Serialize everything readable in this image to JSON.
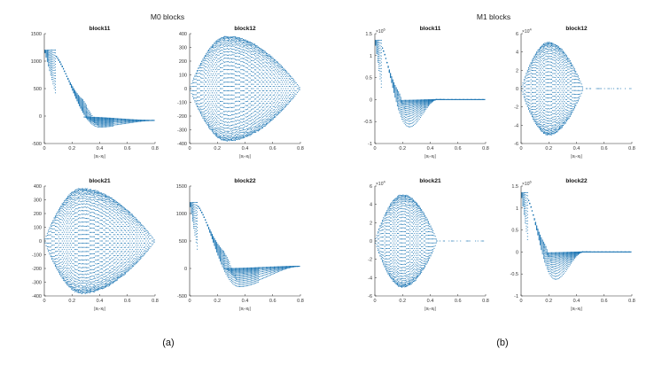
{
  "groups": [
    {
      "id": "m0",
      "title": "M0 blocks",
      "caption": "(a)"
    },
    {
      "id": "m1",
      "title": "M1 blocks",
      "caption": "(b)"
    }
  ],
  "chart_data": [
    {
      "type": "scatter",
      "group": "m0",
      "title": "block11",
      "xlabel": "|xᵢ-xⱼ|",
      "xlim": [
        0,
        0.8
      ],
      "ylim": [
        -500,
        1500
      ],
      "xticks": [
        "0",
        "0.2",
        "0.4",
        "0.6",
        "0.8"
      ],
      "yticks": [
        -500,
        0,
        500,
        1000,
        1500
      ],
      "ytick_labels": [
        "-500",
        "0",
        "500",
        "1000",
        "1500"
      ],
      "y_exponent": "",
      "shape": "decay",
      "series_color": "#1f77b4",
      "params": {
        "start": 1200,
        "low_x": 0.4,
        "low_val": -200,
        "end_val": -80,
        "fan_low": -50,
        "fan_high": 420,
        "fan_peak_x": 0.33,
        "fan_start": 0.08,
        "fan_end": 0.55,
        "flat_from": 0.8
      }
    },
    {
      "type": "scatter",
      "group": "m0",
      "title": "block12",
      "xlabel": "|xᵢ-xⱼ|",
      "xlim": [
        0,
        0.8
      ],
      "ylim": [
        -400,
        400
      ],
      "xticks": [
        "0",
        "0.2",
        "0.4",
        "0.6",
        "0.8"
      ],
      "yticks": [
        -400,
        -300,
        -200,
        -100,
        0,
        100,
        200,
        300,
        400
      ],
      "ytick_labels": [
        "-400",
        "-300",
        "-200",
        "-100",
        "0",
        "100",
        "200",
        "300",
        "400"
      ],
      "y_exponent": "",
      "shape": "lens",
      "series_color": "#1f77b4",
      "params": {
        "amp": 385,
        "peak_x": 0.27,
        "end_x": 0.8
      }
    },
    {
      "type": "scatter",
      "group": "m0",
      "title": "block21",
      "xlabel": "|xᵢ-xⱼ|",
      "xlim": [
        0,
        0.8
      ],
      "ylim": [
        -400,
        400
      ],
      "xticks": [
        "0",
        "0.2",
        "0.4",
        "0.6",
        "0.8"
      ],
      "yticks": [
        -400,
        -300,
        -200,
        -100,
        0,
        100,
        200,
        300,
        400
      ],
      "ytick_labels": [
        "-400",
        "-300",
        "-200",
        "-100",
        "0",
        "100",
        "200",
        "300",
        "400"
      ],
      "y_exponent": "",
      "shape": "lens",
      "series_color": "#1f77b4",
      "params": {
        "amp": 385,
        "peak_x": 0.27,
        "end_x": 0.8
      }
    },
    {
      "type": "scatter",
      "group": "m0",
      "title": "block22",
      "xlabel": "|xᵢ-xⱼ|",
      "xlim": [
        0,
        0.8
      ],
      "ylim": [
        -500,
        1500
      ],
      "xticks": [
        "0",
        "0.2",
        "0.4",
        "0.6",
        "0.8"
      ],
      "yticks": [
        -500,
        0,
        500,
        1000,
        1500
      ],
      "ytick_labels": [
        "-500",
        "0",
        "500",
        "1000",
        "1500"
      ],
      "y_exponent": "",
      "shape": "decay",
      "series_color": "#1f77b4",
      "params": {
        "start": 1200,
        "low_x": 0.36,
        "low_val": -330,
        "end_val": 40,
        "fan_low": 0,
        "fan_high": 270,
        "fan_peak_x": 0.42,
        "fan_start": 0.06,
        "fan_end": 0.6,
        "flat_from": 0.8
      }
    },
    {
      "type": "scatter",
      "group": "m1",
      "title": "block11",
      "xlabel": "|xᵢ-xⱼ|",
      "xlim": [
        0,
        0.8
      ],
      "ylim": [
        -1,
        1.5
      ],
      "xticks": [
        "0",
        "0.2",
        "0.4",
        "0.6",
        "0.8"
      ],
      "yticks": [
        -1,
        -0.5,
        0,
        0.5,
        1,
        1.5
      ],
      "ytick_labels": [
        "-1",
        "-0.5",
        "0",
        "0.5",
        "1",
        "1.5"
      ],
      "y_exponent": "6",
      "shape": "decay",
      "series_color": "#1f77b4",
      "params": {
        "start": 1.35,
        "low_x": 0.25,
        "low_val": -0.62,
        "end_val": 0.0,
        "fan_low": -0.05,
        "fan_high": 0.2,
        "fan_peak_x": 0.2,
        "fan_start": 0.05,
        "fan_end": 0.42,
        "flat_from": 0.45
      }
    },
    {
      "type": "scatter",
      "group": "m1",
      "title": "block12",
      "xlabel": "|xᵢ-xⱼ|",
      "xlim": [
        0,
        0.8
      ],
      "ylim": [
        -6,
        6
      ],
      "xticks": [
        "0",
        "0.2",
        "0.4",
        "0.6",
        "0.8"
      ],
      "yticks": [
        -6,
        -4,
        -2,
        0,
        2,
        4,
        6
      ],
      "ytick_labels": [
        "-6",
        "-4",
        "-2",
        "0",
        "2",
        "4",
        "6"
      ],
      "y_exponent": "4",
      "shape": "lens",
      "series_color": "#1f77b4",
      "params": {
        "amp": 5.1,
        "peak_x": 0.2,
        "end_x": 0.45
      }
    },
    {
      "type": "scatter",
      "group": "m1",
      "title": "block21",
      "xlabel": "|xᵢ-xⱼ|",
      "xlim": [
        0,
        0.8
      ],
      "ylim": [
        -6,
        6
      ],
      "xticks": [
        "0",
        "0.2",
        "0.4",
        "0.6",
        "0.8"
      ],
      "yticks": [
        -6,
        -4,
        -2,
        0,
        2,
        4,
        6
      ],
      "ytick_labels": [
        "-6",
        "-4",
        "-2",
        "0",
        "2",
        "4",
        "6"
      ],
      "y_exponent": "4",
      "shape": "lens",
      "series_color": "#1f77b4",
      "params": {
        "amp": 5.1,
        "peak_x": 0.2,
        "end_x": 0.45
      }
    },
    {
      "type": "scatter",
      "group": "m1",
      "title": "block22",
      "xlabel": "|xᵢ-xⱼ|",
      "xlim": [
        0,
        0.8
      ],
      "ylim": [
        -1,
        1.5
      ],
      "xticks": [
        "0",
        "0.2",
        "0.4",
        "0.6",
        "0.8"
      ],
      "yticks": [
        -1,
        -0.5,
        0,
        0.5,
        1,
        1.5
      ],
      "ytick_labels": [
        "-1",
        "-0.5",
        "0",
        "0.5",
        "1",
        "1.5"
      ],
      "y_exponent": "6",
      "shape": "decay",
      "series_color": "#1f77b4",
      "params": {
        "start": 1.35,
        "low_x": 0.25,
        "low_val": -0.62,
        "end_val": 0.0,
        "fan_low": -0.05,
        "fan_high": 0.2,
        "fan_peak_x": 0.2,
        "fan_start": 0.05,
        "fan_end": 0.42,
        "flat_from": 0.45
      }
    }
  ]
}
